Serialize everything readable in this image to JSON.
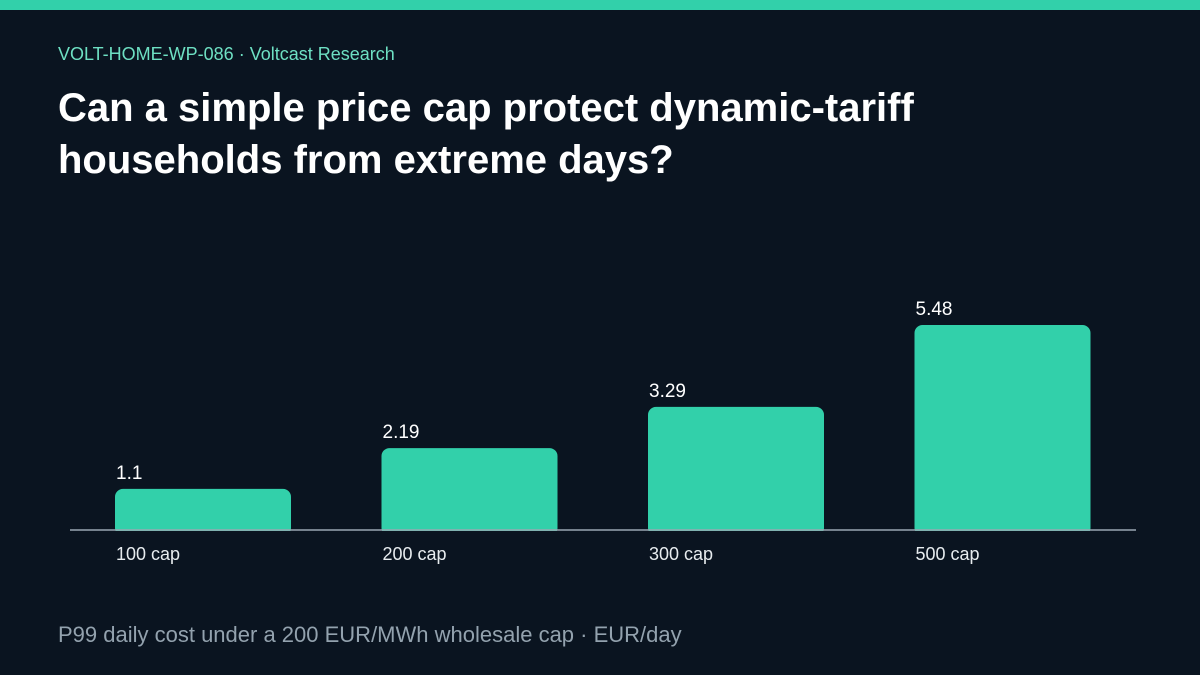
{
  "header": {
    "eyebrow": "VOLT-HOME-WP-086 · Voltcast Research",
    "title": "Can a simple price cap protect dynamic-tariff households from extreme days?"
  },
  "footer": {
    "caption": "P99 daily cost under a 200 EUR/MWh wholesale cap · EUR/day"
  },
  "colors": {
    "accent": "#32d0aa",
    "background": "#0a1420",
    "baseline": "#9aa7b2"
  },
  "chart_data": {
    "type": "bar",
    "categories": [
      "100 cap",
      "200 cap",
      "300 cap",
      "500 cap"
    ],
    "values": [
      1.1,
      2.19,
      3.29,
      5.48
    ],
    "value_labels": [
      "1.1",
      "2.19",
      "3.29",
      "5.48"
    ],
    "title": "",
    "xlabel": "",
    "ylabel": "",
    "ylim": [
      0,
      5.48
    ],
    "grid": false,
    "legend": "none"
  }
}
